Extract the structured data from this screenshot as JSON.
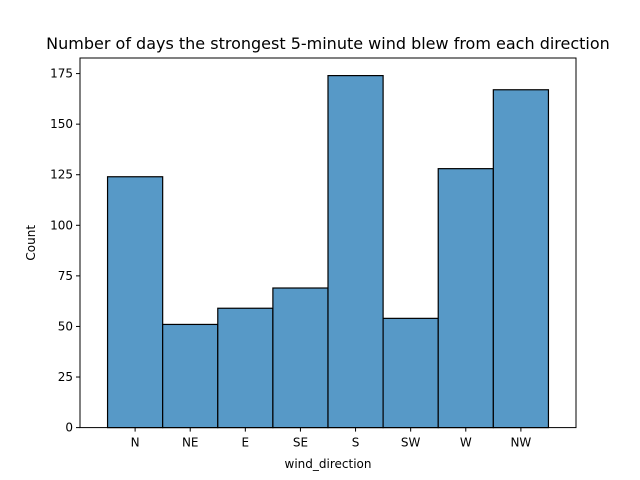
{
  "chart_data": {
    "type": "bar",
    "title": "Number of days the strongest 5-minute wind blew from each direction",
    "xlabel": "wind_direction",
    "ylabel": "Count",
    "categories": [
      "N",
      "NE",
      "E",
      "SE",
      "S",
      "SW",
      "W",
      "NW"
    ],
    "values": [
      124,
      51,
      59,
      69,
      174,
      54,
      128,
      167
    ],
    "ylim": [
      0,
      182.7
    ],
    "yticks": [
      0,
      25,
      50,
      75,
      100,
      125,
      150,
      175
    ],
    "grid": false,
    "legend": "none",
    "bar_color": "#5799c7",
    "edge_color": "#000000"
  }
}
